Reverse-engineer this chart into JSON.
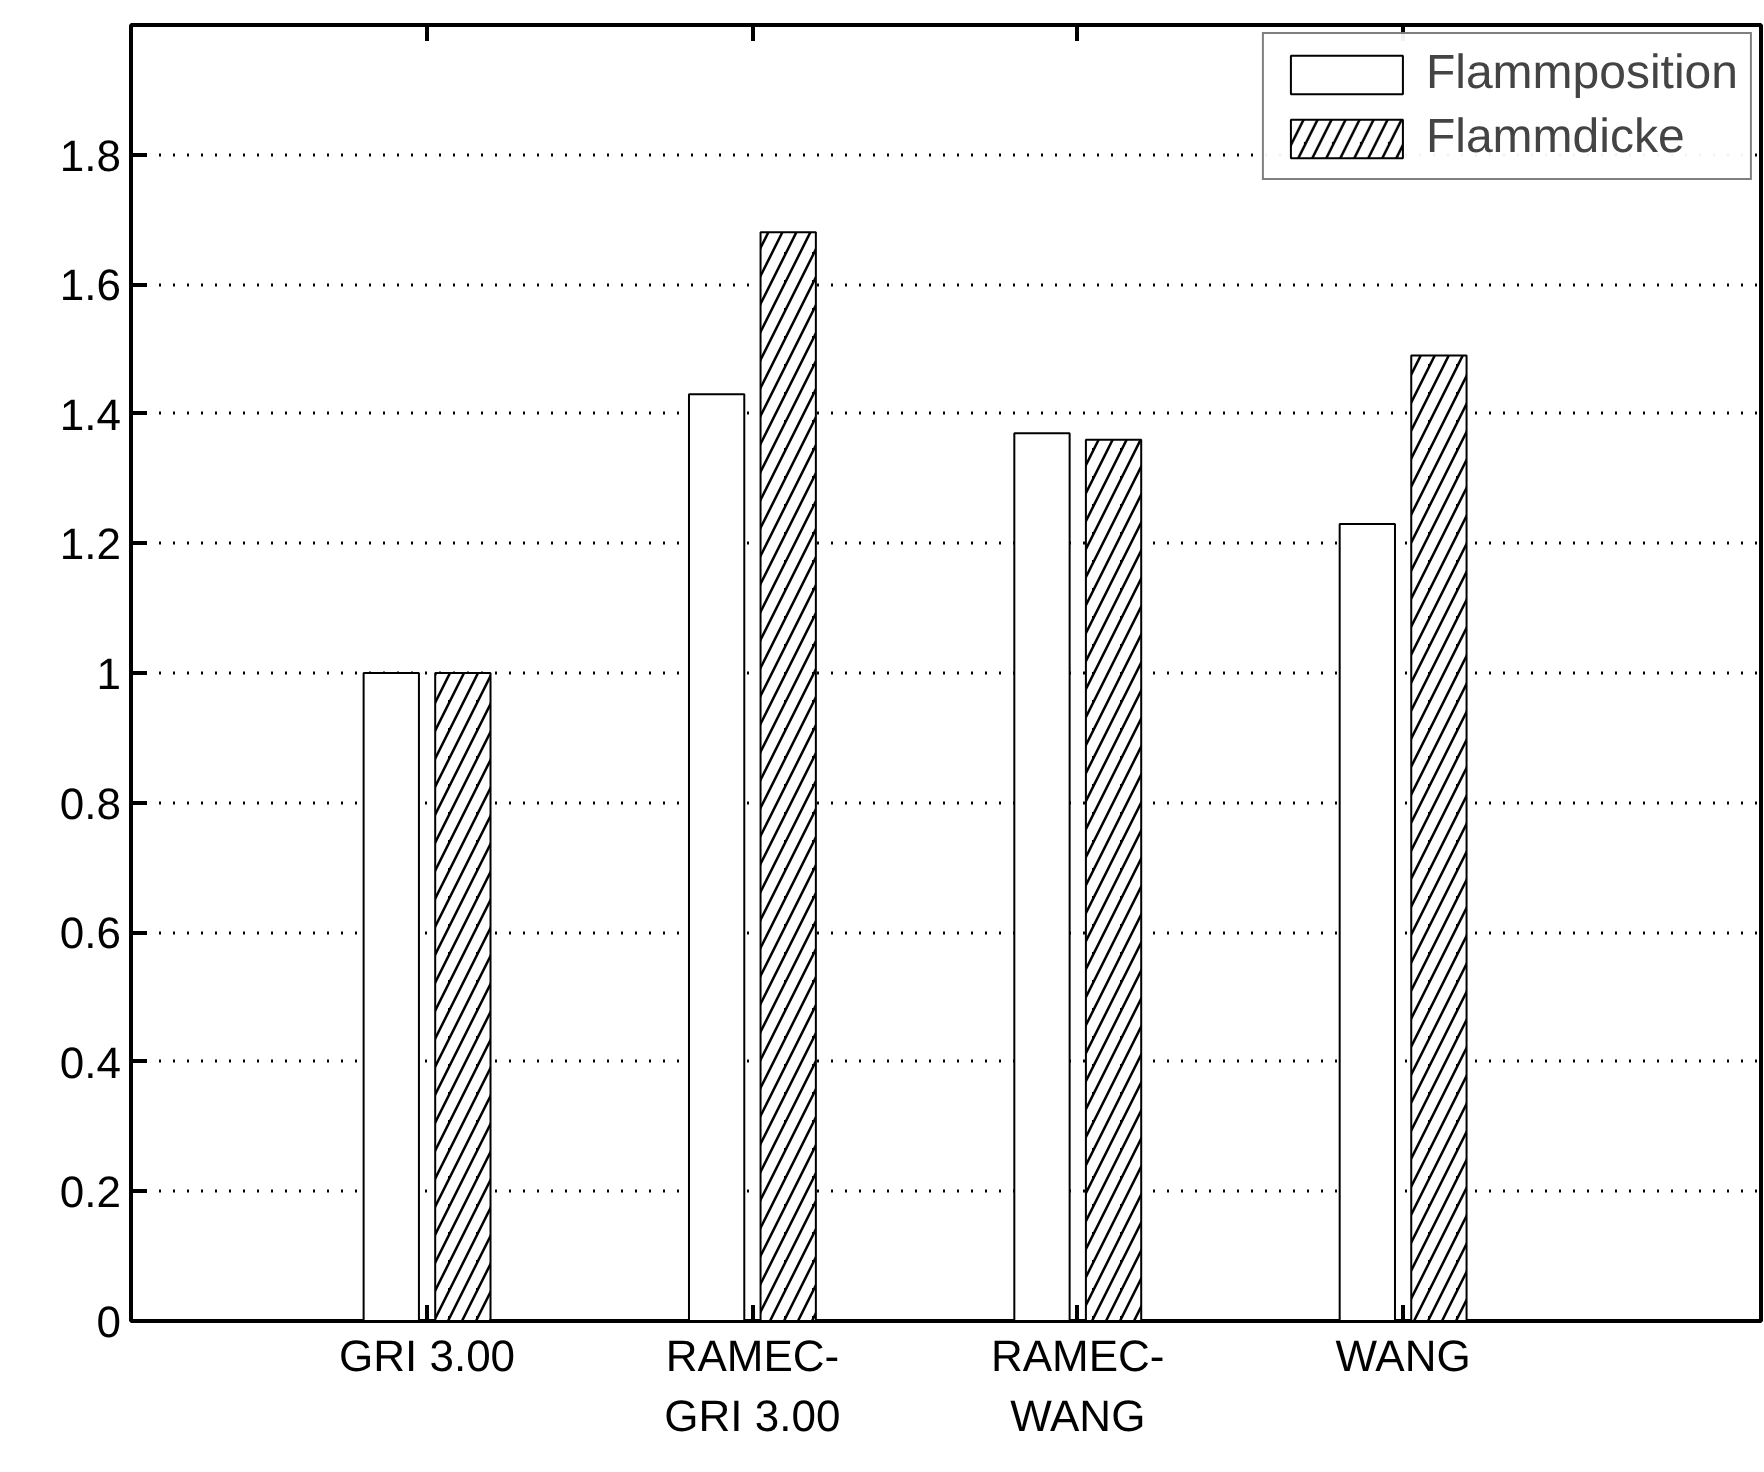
{
  "chart_data": {
    "type": "bar",
    "categories": [
      "GRI 3.00",
      "RAMEC-\nGRI 3.00",
      "RAMEC-\nWANG",
      "WANG"
    ],
    "series": [
      {
        "name": "Flammposition",
        "color": "#ffffff",
        "values": [
          1.0,
          1.43,
          1.37,
          1.23
        ]
      },
      {
        "name": "Flammdicke",
        "color": "#000000",
        "values": [
          1.0,
          1.68,
          1.36,
          1.49
        ]
      }
    ],
    "ylim": [
      0,
      2
    ],
    "yticks": [
      0,
      0.2,
      0.4,
      0.6,
      0.8,
      1,
      1.2,
      1.4,
      1.6,
      1.8
    ],
    "grid": "y",
    "legend": "top right"
  }
}
